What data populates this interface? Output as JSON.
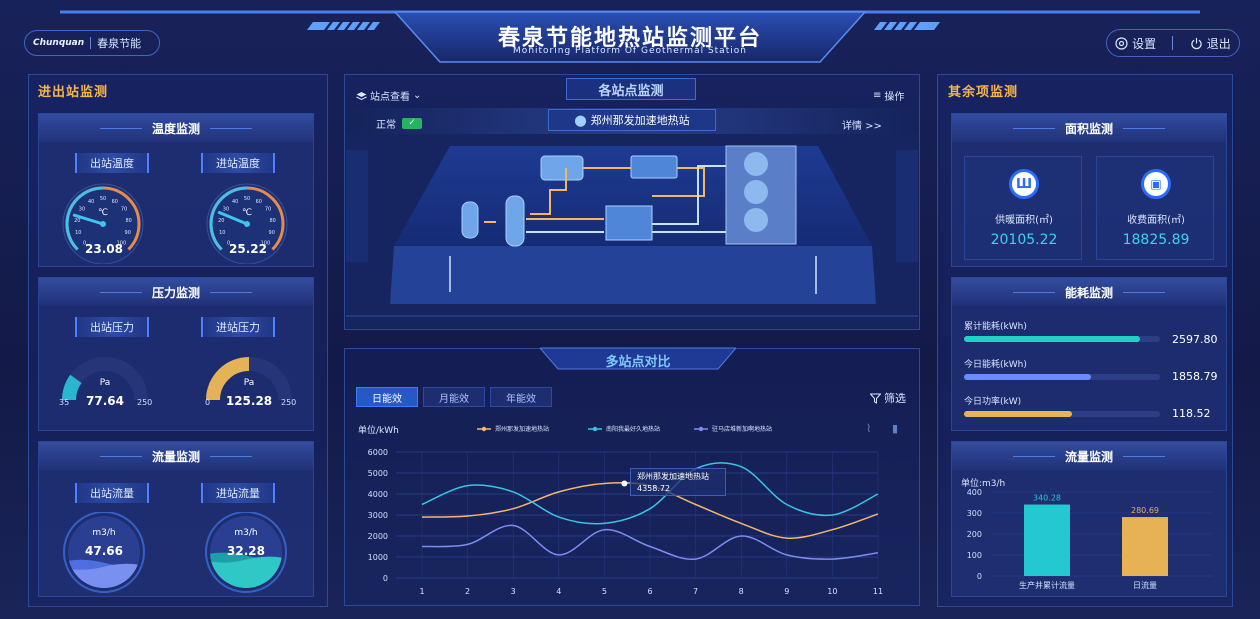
{
  "header": {
    "title": "春泉节能地热站监测平台",
    "subtitle": "Monitoring Platform Of Geothermal Station",
    "logo_brand": "Chunquan",
    "logo_text": "春泉节能",
    "settings_label": "设置",
    "logout_label": "退出"
  },
  "left": {
    "title": "进出站监测",
    "temperature": {
      "title": "温度监测",
      "out_label": "出站温度",
      "in_label": "进站温度",
      "unit": "℃",
      "out_value": "23.08",
      "in_value": "25.22",
      "out_frac": 0.23,
      "in_frac": 0.25,
      "ticks": [
        "0",
        "10",
        "20",
        "30",
        "40",
        "50",
        "60",
        "70",
        "80",
        "90",
        "100"
      ]
    },
    "pressure": {
      "title": "压力监测",
      "out_label": "出站压力",
      "in_label": "进站压力",
      "unit": "Pa",
      "out_value": "77.64",
      "in_value": "125.28",
      "out_min": "35",
      "in_min": "0",
      "max": "250",
      "out_frac": 0.2,
      "in_frac": 0.5
    },
    "flow": {
      "title": "流量监测",
      "out_label": "出站流量",
      "in_label": "进站流量",
      "unit": "m3/h",
      "out_value": "47.66",
      "in_value": "32.28",
      "out_frac": 0.35,
      "in_frac": 0.45
    }
  },
  "middle": {
    "title": "各站点监测",
    "station_view": "站点查看",
    "ops_label": "操作",
    "status_label": "正常",
    "station_name": "郑州那发加速地热站",
    "detail_label": "详情 >>",
    "compare_title": "多站点对比",
    "tabs": [
      "日能效",
      "月能效",
      "年能效"
    ],
    "filter_label": "筛选",
    "unit_label": "单位/kWh",
    "tooltip_name": "郑州那发加速地热站",
    "tooltip_value": "4358.72"
  },
  "chart_data": {
    "type": "line",
    "x": [
      1,
      2,
      3,
      4,
      5,
      6,
      7,
      8,
      9,
      10,
      11
    ],
    "ylim": [
      0,
      6000
    ],
    "yticks": [
      "0",
      "1000",
      "2000",
      "3000",
      "4000",
      "5000",
      "6000"
    ],
    "xticks": [
      "1",
      "2",
      "3",
      "4",
      "5",
      "6",
      "7",
      "8",
      "9",
      "10",
      "11"
    ],
    "series": [
      {
        "name": "郑州那发加速地热站",
        "color": "#f5b66e",
        "values": [
          2900,
          2950,
          3300,
          4100,
          4500,
          4400,
          3500,
          2600,
          1900,
          2300,
          3050
        ]
      },
      {
        "name": "南阳我最好久地热站",
        "color": "#39c6e3",
        "values": [
          3500,
          4400,
          4100,
          2900,
          2600,
          3300,
          5200,
          5300,
          3500,
          3000,
          4000
        ]
      },
      {
        "name": "驻马店堆新加啊地热站",
        "color": "#7e8cf0",
        "values": [
          1500,
          1600,
          2500,
          1100,
          2300,
          1500,
          900,
          2000,
          1100,
          900,
          1200
        ]
      }
    ]
  },
  "right": {
    "title": "其余项监测",
    "area": {
      "title": "面积监测",
      "heat_label": "供暖面积(㎡)",
      "heat_value": "20105.22",
      "fee_label": "收费面积(㎡)",
      "fee_value": "18825.89"
    },
    "energy": {
      "title": "能耗监测",
      "items": [
        {
          "label": "累计能耗(kWh)",
          "value": "2597.80",
          "frac": 0.9,
          "color": "#22d1c6"
        },
        {
          "label": "今日能耗(kWh)",
          "value": "1858.79",
          "frac": 0.65,
          "color": "#6b8cff"
        },
        {
          "label": "今日功率(kW)",
          "value": "118.52",
          "frac": 0.55,
          "color": "#e7b35a"
        }
      ]
    },
    "flow": {
      "title": "流量监测",
      "unit": "单位:m3/h",
      "bars": [
        {
          "label": "生产井累计流量",
          "value": 340.28,
          "text": "340.28",
          "color": "#23c8d0"
        },
        {
          "label": "日流量",
          "value": 280.69,
          "text": "280.69",
          "color": "#e6b255"
        }
      ],
      "ylim": [
        0,
        400
      ],
      "yticks": [
        "0",
        "100",
        "200",
        "300",
        "400"
      ]
    }
  }
}
